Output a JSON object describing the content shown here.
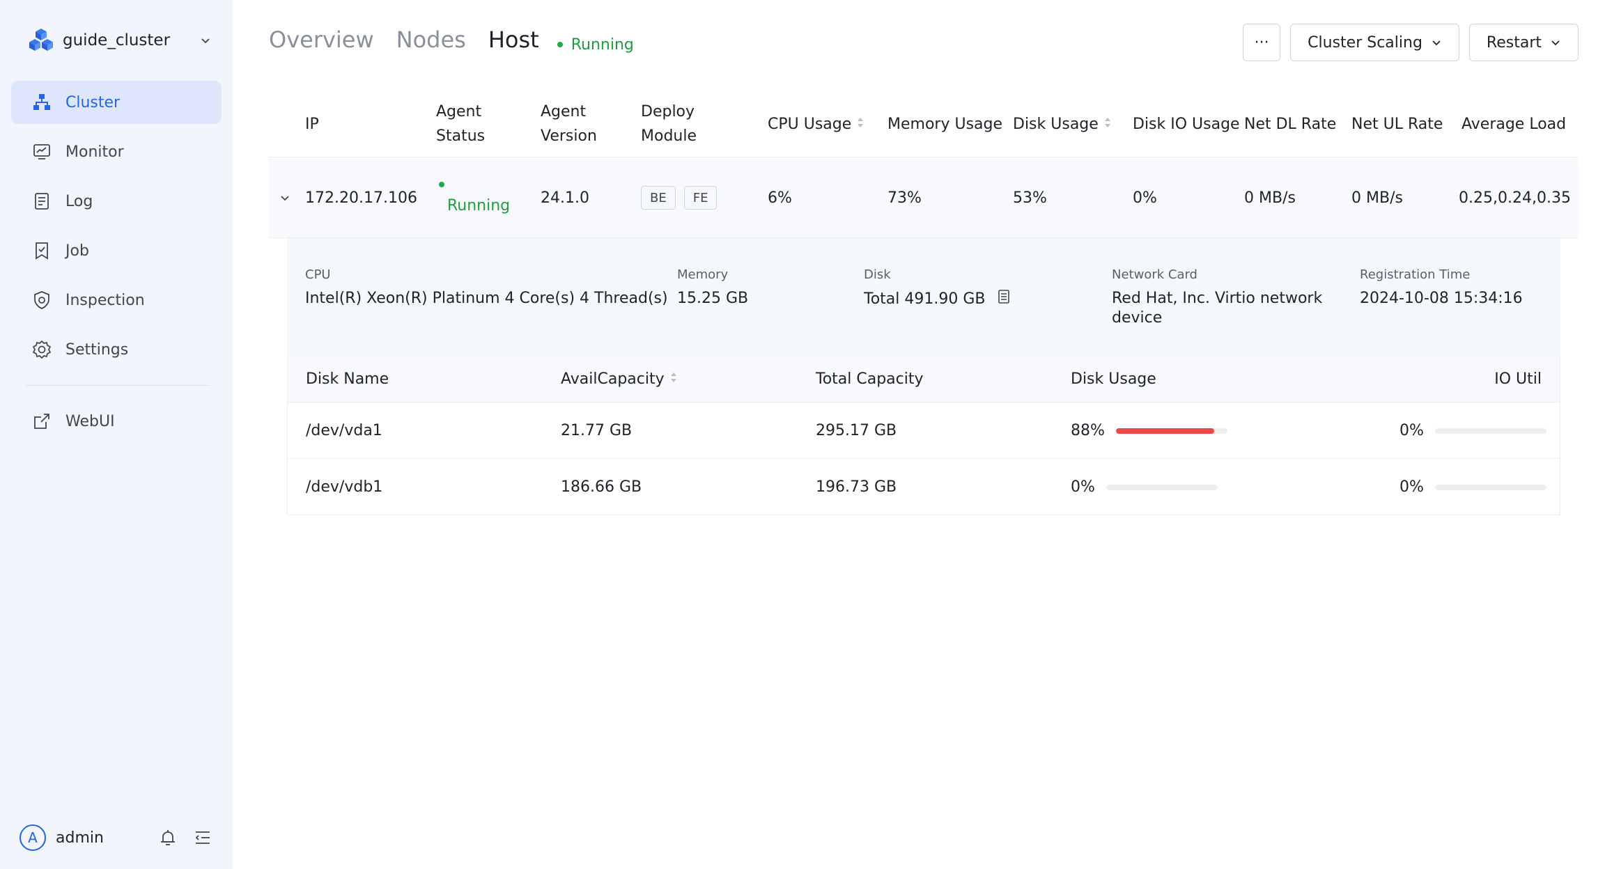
{
  "sidebar": {
    "cluster_name": "guide_cluster",
    "items": [
      {
        "label": "Cluster",
        "icon": "cluster-icon",
        "active": true
      },
      {
        "label": "Monitor",
        "icon": "monitor-icon"
      },
      {
        "label": "Log",
        "icon": "log-icon"
      },
      {
        "label": "Job",
        "icon": "job-icon"
      },
      {
        "label": "Inspection",
        "icon": "inspection-icon"
      },
      {
        "label": "Settings",
        "icon": "gear-icon"
      }
    ],
    "webui": {
      "label": "WebUI",
      "icon": "external-link-icon"
    },
    "user": {
      "avatar_letter": "A",
      "name": "admin"
    }
  },
  "header": {
    "tabs": [
      {
        "label": "Overview"
      },
      {
        "label": "Nodes"
      },
      {
        "label": "Host",
        "active": true
      }
    ],
    "status": "Running",
    "more_label": "···",
    "scaling_label": "Cluster Scaling",
    "restart_label": "Restart"
  },
  "hosts": {
    "columns": {
      "ip": "IP",
      "agent_status_1": "Agent",
      "agent_status_2": "Status",
      "agent_version_1": "Agent",
      "agent_version_2": "Version",
      "deploy_module_1": "Deploy",
      "deploy_module_2": "Module",
      "cpu_usage": "CPU Usage",
      "memory_usage": "Memory Usage",
      "disk_usage": "Disk Usage",
      "disk_io_usage": "Disk IO Usage",
      "net_dl_rate": "Net DL Rate",
      "net_ul_rate": "Net UL Rate",
      "average_load": "Average Load"
    },
    "row": {
      "ip": "172.20.17.106",
      "agent_status": "Running",
      "agent_version": "24.1.0",
      "modules": [
        "BE",
        "FE"
      ],
      "cpu_usage": "6%",
      "memory_usage": "73%",
      "disk_usage": "53%",
      "disk_io_usage": "0%",
      "net_dl_rate": "0 MB/s",
      "net_ul_rate": "0 MB/s",
      "average_load": "0.25,0.24,0.35"
    }
  },
  "detail": {
    "cpu": {
      "label": "CPU",
      "value": "Intel(R) Xeon(R) Platinum 4 Core(s) 4 Thread(s)"
    },
    "memory": {
      "label": "Memory",
      "value": "15.25 GB"
    },
    "disk": {
      "label": "Disk",
      "value": "Total 491.90 GB"
    },
    "network_card": {
      "label": "Network Card",
      "value_1": "Red Hat, Inc. Virtio network",
      "value_2": "device"
    },
    "registration_time": {
      "label": "Registration Time",
      "value": "2024-10-08 15:34:16"
    },
    "disk_table": {
      "columns": {
        "disk_name": "Disk Name",
        "avail_capacity": "AvailCapacity",
        "total_capacity": "Total Capacity",
        "disk_usage": "Disk Usage",
        "io_util": "IO Util"
      },
      "rows": [
        {
          "name": "/dev/vda1",
          "avail": "21.77 GB",
          "total": "295.17 GB",
          "usage": "88%",
          "usage_fraction": 0.88,
          "io_util": "0%",
          "io_fraction": 0
        },
        {
          "name": "/dev/vdb1",
          "avail": "186.66 GB",
          "total": "196.73 GB",
          "usage": "0%",
          "usage_fraction": 0,
          "io_util": "0%",
          "io_fraction": 0
        }
      ]
    }
  },
  "colors": {
    "accent": "#2464e8",
    "running": "#1e9e3e",
    "usage_bar": "#e84848",
    "sidebar_bg": "#f2f5fb"
  }
}
